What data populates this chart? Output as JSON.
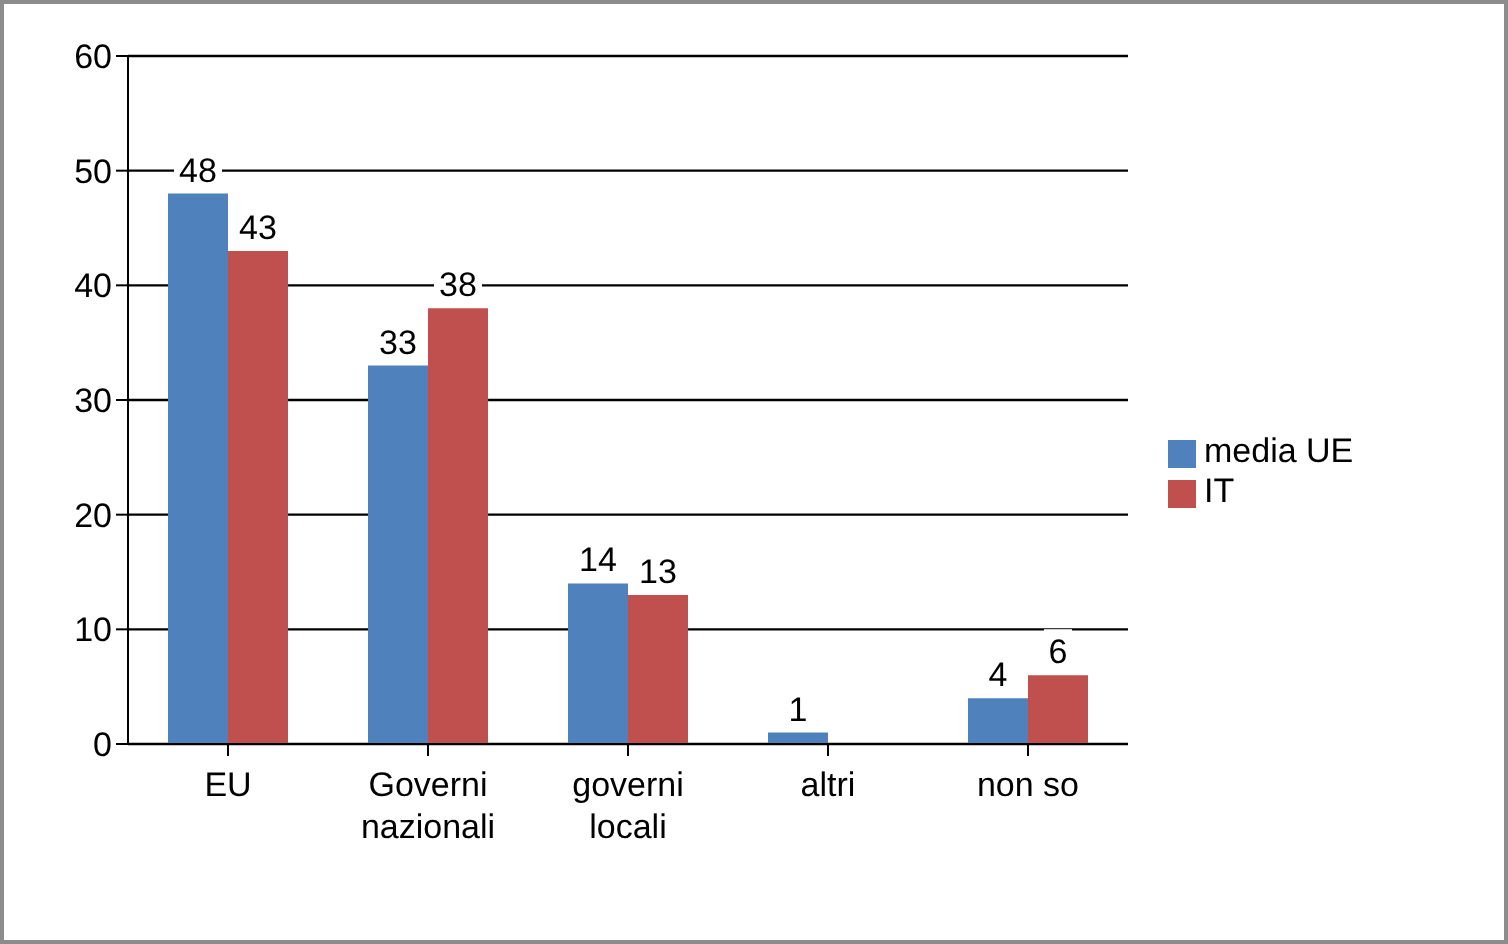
{
  "chart_data": {
    "type": "bar",
    "categories": [
      "EU",
      "Governi nazionali",
      "governi locali",
      "altri",
      "non so"
    ],
    "series": [
      {
        "name": "media UE",
        "color": "#4f81bd",
        "values": [
          48,
          33,
          14,
          1,
          4
        ]
      },
      {
        "name": "IT",
        "color": "#c0504d",
        "values": [
          43,
          38,
          13,
          null,
          6
        ]
      }
    ],
    "ylim": [
      0,
      60
    ],
    "yticks": [
      0,
      10,
      20,
      30,
      40,
      50,
      60
    ],
    "grid": "y",
    "legend": "right",
    "data_labels": true
  }
}
